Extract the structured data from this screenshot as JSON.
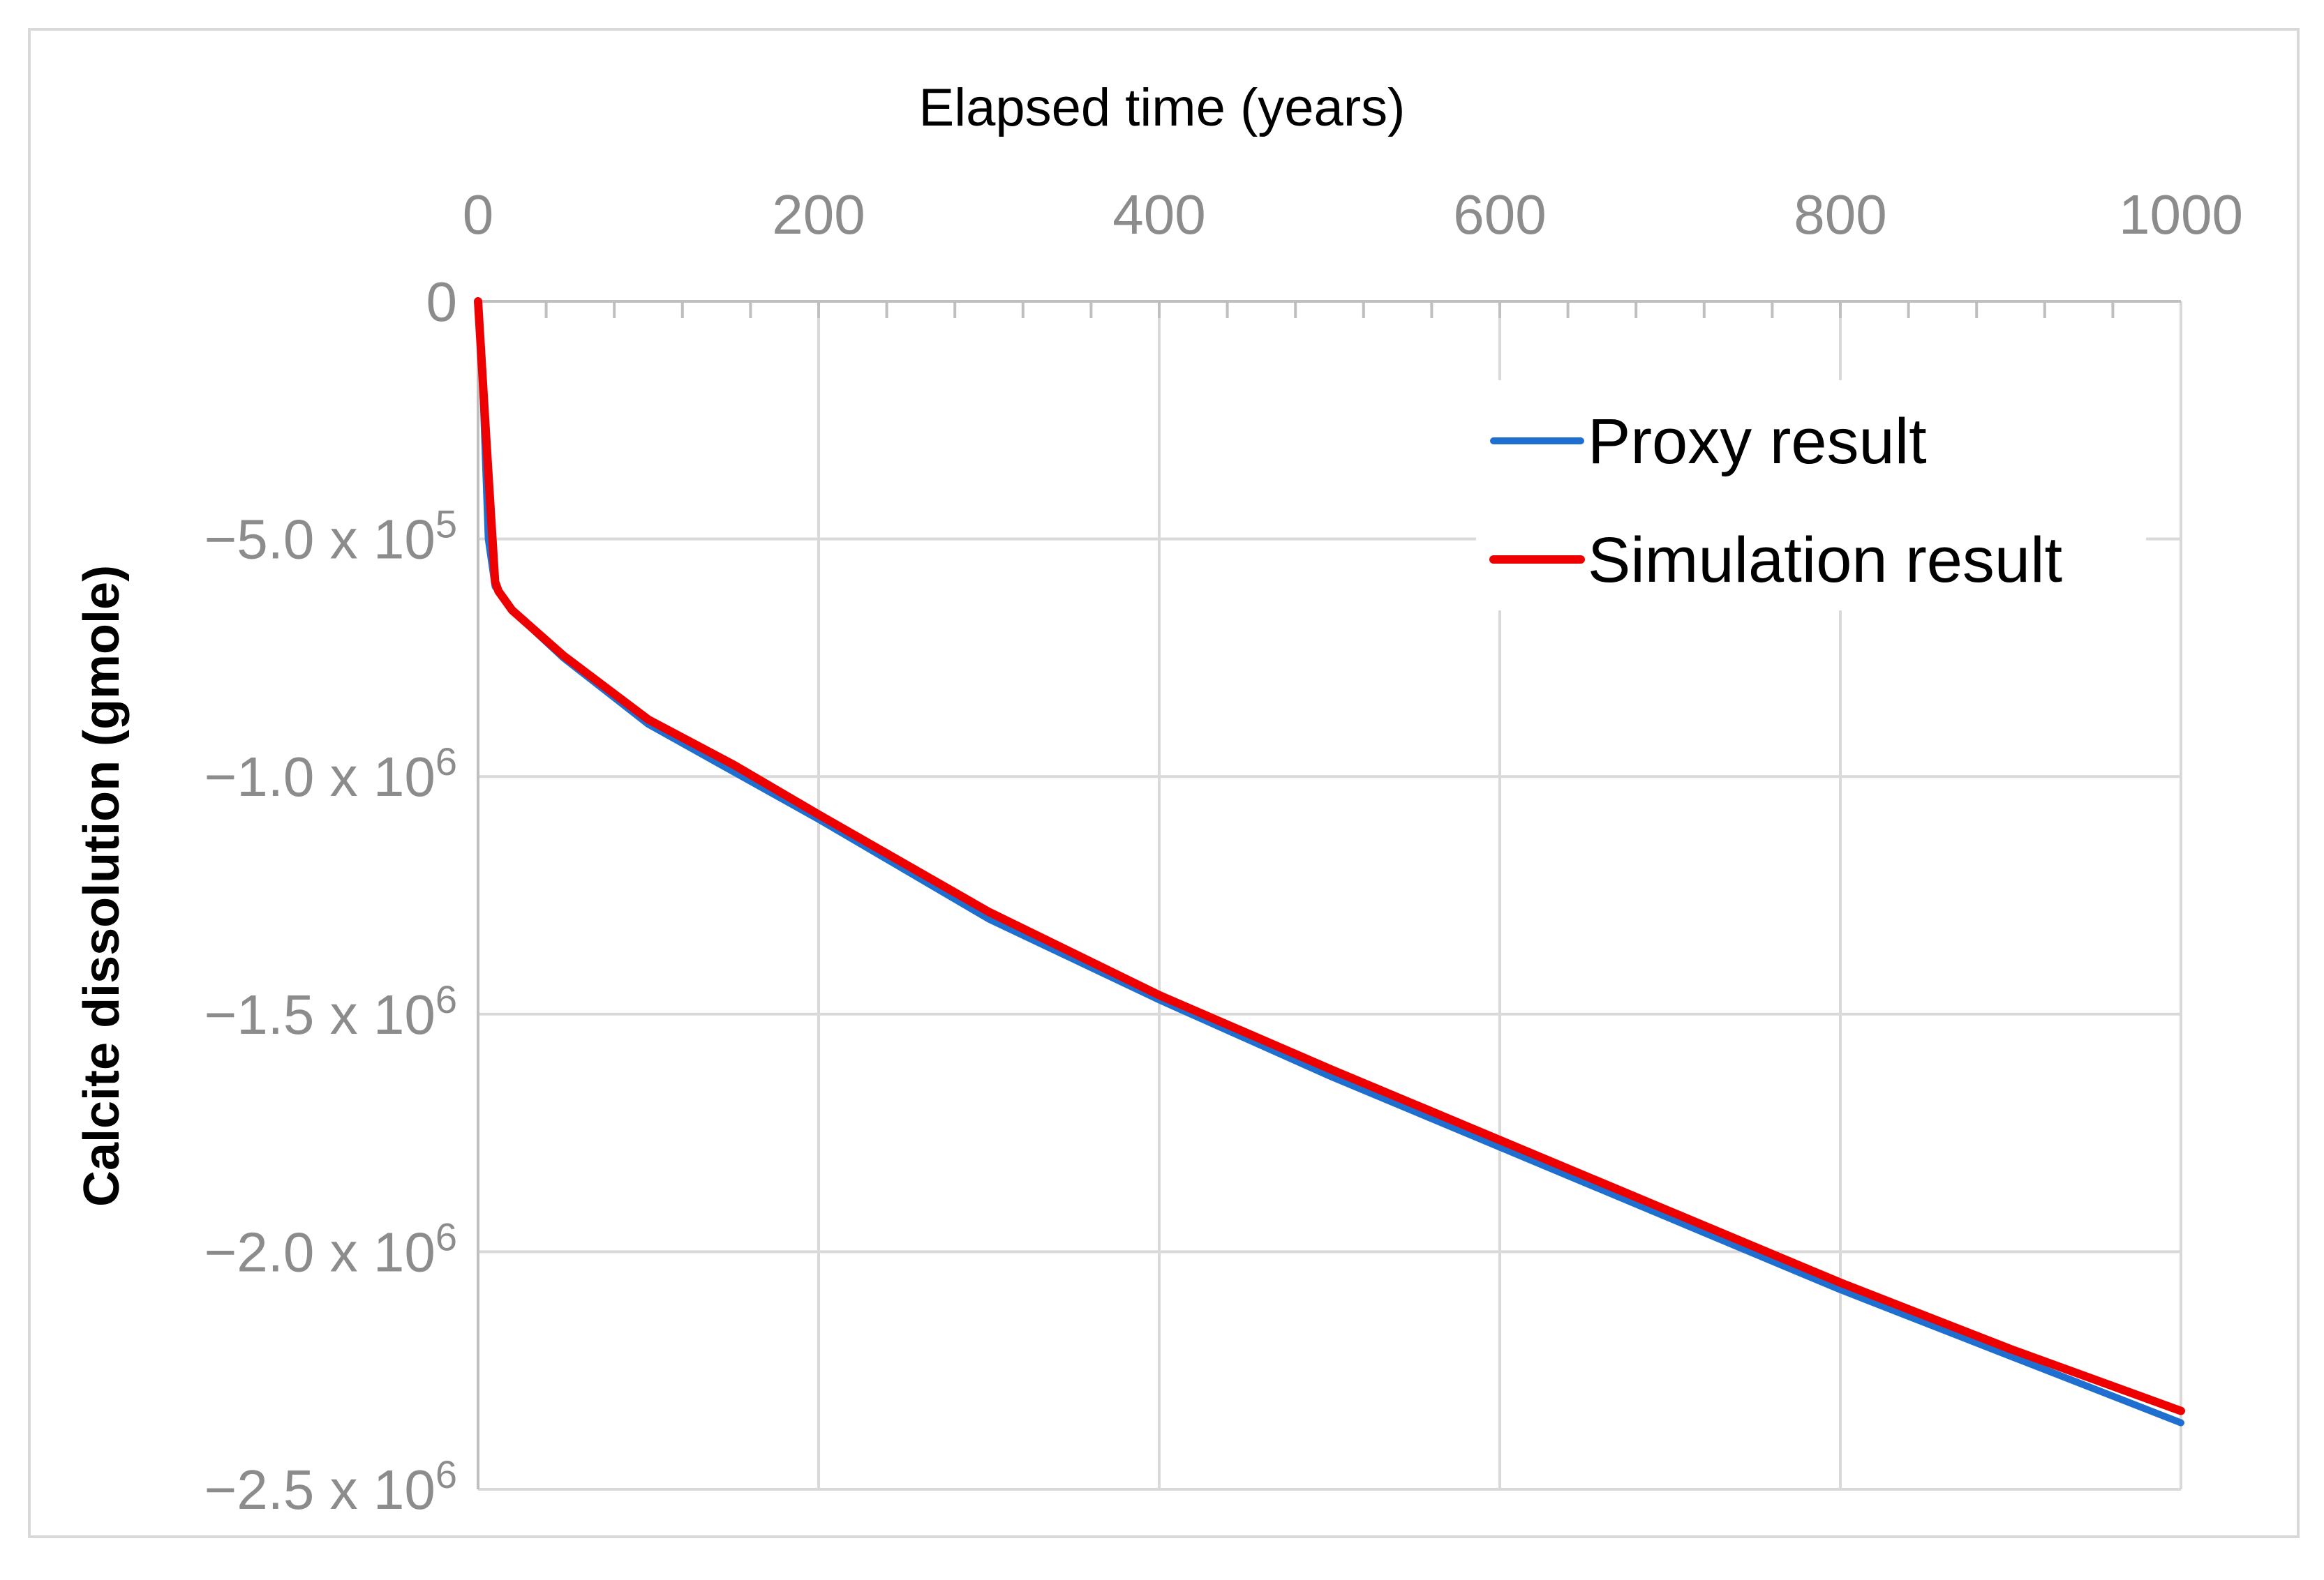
{
  "chart_data": {
    "type": "line",
    "title": "",
    "xlabel": "Elapsed time (years)",
    "ylabel": "Calcite dissolution (gmole)",
    "xlim": [
      0,
      1000
    ],
    "ylim": [
      -2500000,
      0
    ],
    "x_ticks": [
      {
        "value": 0,
        "label": "0"
      },
      {
        "value": 200,
        "label": "200"
      },
      {
        "value": 400,
        "label": "400"
      },
      {
        "value": 600,
        "label": "600"
      },
      {
        "value": 800,
        "label": "800"
      },
      {
        "value": 1000,
        "label": "1000"
      }
    ],
    "y_ticks": [
      {
        "value": 0,
        "base": "0",
        "exp": ""
      },
      {
        "value": -500000,
        "base": "−5.0 x 10",
        "exp": "5"
      },
      {
        "value": -1000000,
        "base": "−1.0 x 10",
        "exp": "6"
      },
      {
        "value": -1500000,
        "base": "−1.5 x 10",
        "exp": "6"
      },
      {
        "value": -2000000,
        "base": "−2.0 x 10",
        "exp": "6"
      },
      {
        "value": -2500000,
        "base": "−2.5 x 10",
        "exp": "6"
      }
    ],
    "minor_x_tick_step": 40,
    "grid": true,
    "legend_position": "top-right",
    "series": [
      {
        "name": "Proxy result",
        "color": "#1f6fd1",
        "x": [
          0,
          3,
          6,
          10,
          20,
          50,
          100,
          150,
          200,
          300,
          400,
          500,
          600,
          700,
          800,
          900,
          1000
        ],
        "values": [
          0,
          -200000,
          -500000,
          -600000,
          -650000,
          -750000,
          -890000,
          -990000,
          -1090000,
          -1300000,
          -1470000,
          -1630000,
          -1780000,
          -1930000,
          -2080000,
          -2220000,
          -2360000
        ]
      },
      {
        "name": "Simulation result",
        "color": "#ee0000",
        "x": [
          0,
          5,
          10,
          12,
          20,
          50,
          100,
          150,
          200,
          300,
          400,
          500,
          600,
          700,
          800,
          900,
          1000
        ],
        "values": [
          0,
          -300000,
          -590000,
          -610000,
          -650000,
          -745000,
          -880000,
          -975000,
          -1080000,
          -1285000,
          -1460000,
          -1615000,
          -1765000,
          -1915000,
          -2065000,
          -2205000,
          -2335000
        ]
      }
    ]
  }
}
